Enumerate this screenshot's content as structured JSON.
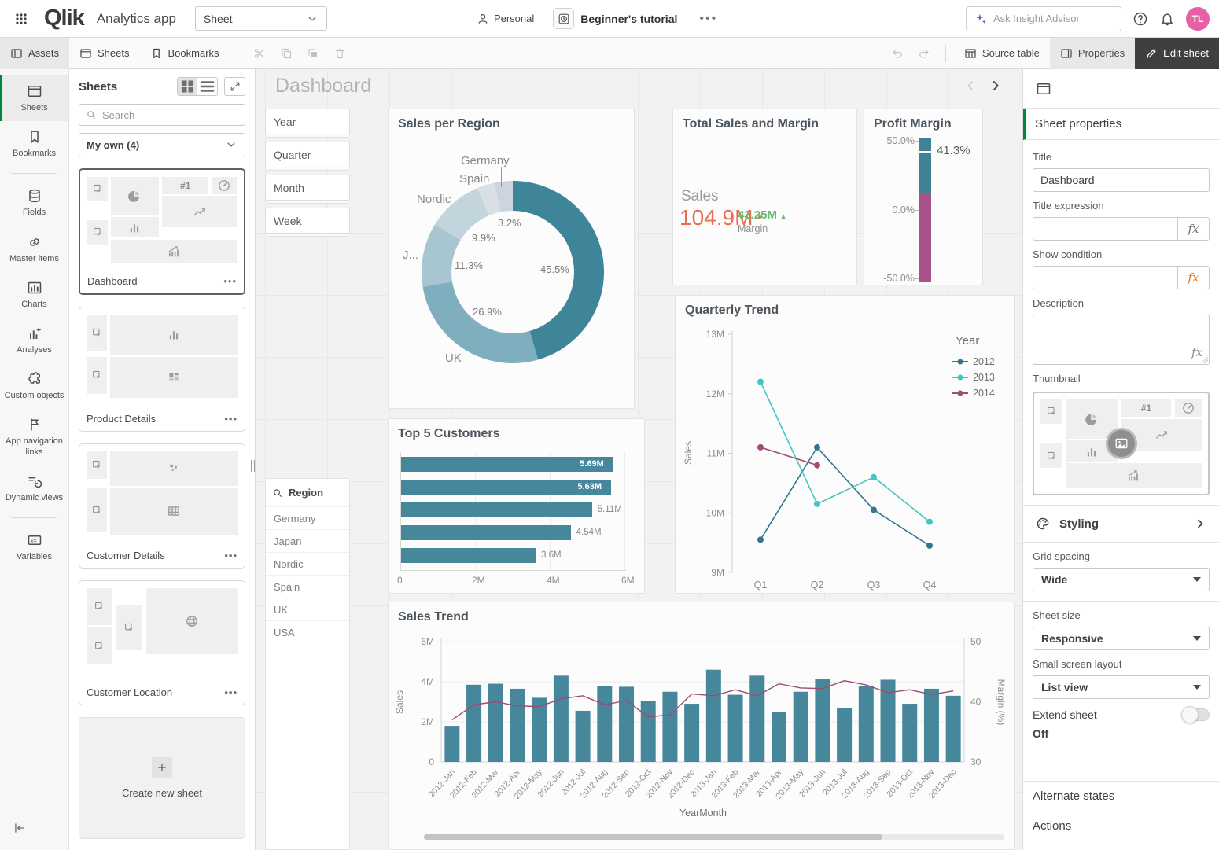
{
  "topbar": {
    "app_title": "Analytics app",
    "sheet_selector": "Sheet",
    "personal": "Personal",
    "tutorial": "Beginner's tutorial",
    "insight_placeholder": "Ask Insight Advisor",
    "avatar_initials": "TL"
  },
  "toolbar": {
    "tabs": [
      "Assets",
      "Sheets",
      "Bookmarks"
    ],
    "source_table": "Source table",
    "properties": "Properties",
    "edit_sheet": "Edit sheet"
  },
  "nav_rail": {
    "items": [
      {
        "label": "Sheets",
        "icon": "sheet",
        "active": true
      },
      {
        "label": "Bookmarks",
        "icon": "bookmark"
      },
      {
        "label": "Fields",
        "icon": "db"
      },
      {
        "label": "Master items",
        "icon": "link"
      },
      {
        "label": "Charts",
        "icon": "chartsBox"
      },
      {
        "label": "Analyses",
        "icon": "analyses"
      },
      {
        "label": "Custom objects",
        "icon": "puzzle"
      },
      {
        "label": "App navigation links",
        "icon": "flag"
      },
      {
        "label": "Dynamic views",
        "icon": "dyn"
      },
      {
        "label": "Variables",
        "icon": "varIc"
      }
    ]
  },
  "sheets_panel": {
    "title": "Sheets",
    "search_placeholder": "Search",
    "filter_value": "My own (4)",
    "kpi_glyph": "#1",
    "sheets": [
      {
        "name": "Dashboard",
        "layout": "dashboard",
        "selected": true
      },
      {
        "name": "Product Details",
        "layout": "product",
        "selected": false
      },
      {
        "name": "Customer Details",
        "layout": "customer",
        "selected": false
      },
      {
        "name": "Customer Location",
        "layout": "location",
        "selected": false
      }
    ],
    "create_new": "Create new sheet"
  },
  "canvas": {
    "title": "Dashboard",
    "filters": [
      "Year",
      "Quarter",
      "Month",
      "Week"
    ],
    "region_filter": {
      "title": "Region",
      "items": [
        "Germany",
        "Japan",
        "Nordic",
        "Spain",
        "UK",
        "USA"
      ]
    }
  },
  "chart_data": [
    {
      "id": "sales_per_region",
      "type": "pie",
      "title": "Sales per Region",
      "segments": [
        {
          "label": "USA",
          "pct": 45.5,
          "pct_label": "45.5%",
          "color": "#3e8599"
        },
        {
          "label": "UK",
          "pct": 26.9,
          "pct_label": "26.9%",
          "color": "#7fafbe"
        },
        {
          "label": "Japan",
          "display_label": "J...",
          "pct": 11.3,
          "pct_label": "11.3%",
          "color": "#a7c6d1"
        },
        {
          "label": "Nordic",
          "pct": 9.9,
          "pct_label": "9.9%",
          "color": "#c3d5dc"
        },
        {
          "label": "Spain",
          "pct": 3.2,
          "pct_label": "3.2%",
          "color": "#d9e0e5"
        },
        {
          "label": "Germany",
          "pct": 3.2,
          "pct_label": "",
          "color": "#ccd5df"
        }
      ]
    },
    {
      "id": "total_sales_margin",
      "type": "kpi",
      "title": "Total Sales and Margin",
      "primary_label": "Sales",
      "primary_value": "104.9M",
      "primary_trend": "▼",
      "secondary_value": "43.25M",
      "secondary_trend": "▲",
      "secondary_label": "Margin"
    },
    {
      "id": "profit_margin",
      "type": "gauge",
      "title": "Profit Margin",
      "value": 41.3,
      "value_label": "41.3%",
      "min": -50,
      "max": 50,
      "axis": [
        "50.0%",
        "0.0%",
        "-50.0%"
      ],
      "upper_color": "#3f8296",
      "lower_color": "#a75389",
      "boundary": 12
    },
    {
      "id": "quarterly_trend",
      "type": "line",
      "title": "Quarterly Trend",
      "ylabel": "Sales",
      "legend_title": "Year",
      "categories": [
        "Q1",
        "Q2",
        "Q3",
        "Q4"
      ],
      "yticks": [
        "13M",
        "12M",
        "11M",
        "10M",
        "9M"
      ],
      "ylim": [
        9,
        13
      ],
      "series": [
        {
          "name": "2012",
          "color": "#35768f",
          "values": [
            9.55,
            11.1,
            10.05,
            9.45
          ]
        },
        {
          "name": "2013",
          "color": "#45c5c2",
          "values": [
            12.2,
            10.15,
            10.6,
            9.85
          ]
        },
        {
          "name": "2014",
          "color": "#a24a7c",
          "values": [
            11.1,
            10.8,
            null,
            null
          ]
        }
      ]
    },
    {
      "id": "top5_customers",
      "type": "bar",
      "title": "Top 5 Customers",
      "values": [
        5.69,
        5.63,
        5.11,
        4.54,
        3.6
      ],
      "value_labels": [
        "5.69M",
        "5.63M",
        "5.11M",
        "4.54M",
        "3.6M"
      ],
      "inside_labels": 2,
      "xticks": [
        "0",
        "2M",
        "4M",
        "6M"
      ],
      "xmax": 6,
      "bar_color": "#47879b"
    },
    {
      "id": "sales_trend",
      "type": "combo",
      "title": "Sales Trend",
      "xlabel": "YearMonth",
      "ylabel_left": "Sales",
      "ylabel_right": "Margin (%)",
      "yticks_left": [
        "6M",
        "4M",
        "2M",
        "0"
      ],
      "ylim_left": [
        0,
        6
      ],
      "yticks_right": [
        "50",
        "40",
        "30"
      ],
      "ylim_right": [
        30,
        50
      ],
      "bar_color": "#47879b",
      "line_color": "#9d4a6e",
      "categories": [
        "2012-Jan",
        "2012-Feb",
        "2012-Mar",
        "2012-Apr",
        "2012-May",
        "2012-Jun",
        "2012-Jul",
        "2012-Aug",
        "2012-Sep",
        "2012-Oct",
        "2012-Nov",
        "2012-Dec",
        "2013-Jan",
        "2013-Feb",
        "2013-Mar",
        "2013-Apr",
        "2013-May",
        "2013-Jun",
        "2013-Jul",
        "2013-Aug",
        "2013-Sep",
        "2013-Oct",
        "2013-Nov",
        "2013-Dec"
      ],
      "series": [
        {
          "name": "Sales",
          "type": "bar",
          "values": [
            1.8,
            3.85,
            3.9,
            3.65,
            3.2,
            4.3,
            2.55,
            3.8,
            3.75,
            3.05,
            3.5,
            2.9,
            4.6,
            3.35,
            4.3,
            2.5,
            3.5,
            4.15,
            2.7,
            3.8,
            4.1,
            2.9,
            3.65,
            3.3
          ]
        },
        {
          "name": "Margin (%)",
          "type": "line",
          "values": [
            37,
            39.5,
            40,
            39.3,
            39.2,
            40.5,
            41,
            39.5,
            40.2,
            37.5,
            37.8,
            41.3,
            41,
            42,
            41,
            43,
            42.3,
            42.2,
            43.5,
            42.8,
            41.5,
            42,
            41.2,
            41.8
          ]
        }
      ]
    }
  ],
  "properties_panel": {
    "header": "Sheet properties",
    "title_label": "Title",
    "title_value": "Dashboard",
    "title_expression_label": "Title expression",
    "show_condition_label": "Show condition",
    "description_label": "Description",
    "fx_glyph": "fx",
    "thumbnail_label": "Thumbnail",
    "styling_label": "Styling",
    "grid_spacing_label": "Grid spacing",
    "grid_spacing_value": "Wide",
    "sheet_size_label": "Sheet size",
    "sheet_size_value": "Responsive",
    "small_screen_label": "Small screen layout",
    "small_screen_value": "List view",
    "extend_sheet_label": "Extend sheet",
    "extend_sheet_state": "Off",
    "alternate_states_label": "Alternate states",
    "actions_label": "Actions"
  }
}
